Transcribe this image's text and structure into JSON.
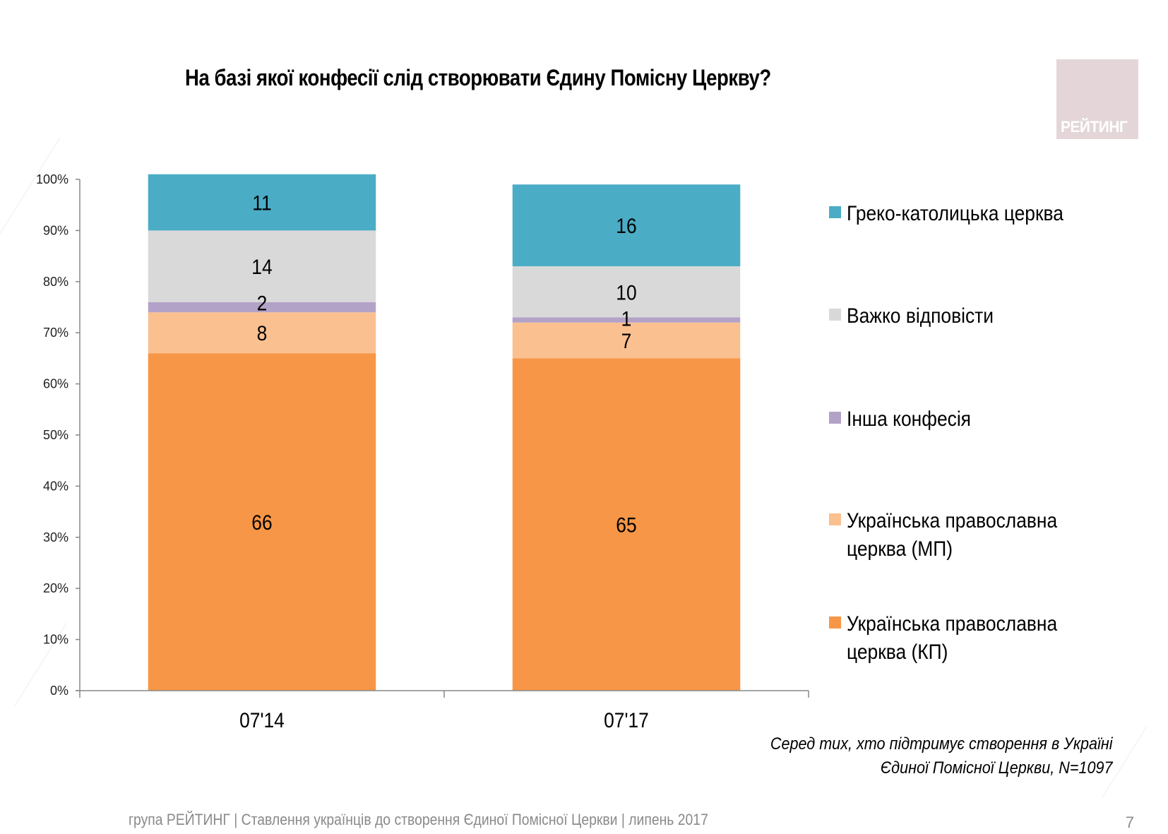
{
  "header": {
    "title": "На базі якої конфесії слід створювати Єдину Помісну Церкву?",
    "logo_text": "РЕЙТИНГ"
  },
  "chart_data": {
    "type": "bar",
    "stacked": true,
    "title": "На базі якої конфесії слід створювати Єдину Помісну Церкву?",
    "xlabel": "",
    "ylabel": "",
    "categories": [
      "07'14",
      "07'17"
    ],
    "ylim": [
      0,
      100
    ],
    "yticks": [
      "0%",
      "10%",
      "20%",
      "30%",
      "40%",
      "50%",
      "60%",
      "70%",
      "80%",
      "90%",
      "100%"
    ],
    "grid": false,
    "legend_position": "right",
    "series": [
      {
        "name": "Українська православна церква (КП)",
        "values": [
          66,
          65
        ],
        "color": "#f79646"
      },
      {
        "name": "Українська православна церква (МП)",
        "values": [
          8,
          7
        ],
        "color": "#fac090"
      },
      {
        "name": "Інша конфесія",
        "values": [
          2,
          1
        ],
        "color": "#b3a2c7"
      },
      {
        "name": "Важко відповісти",
        "values": [
          14,
          10
        ],
        "color": "#d9d9d9"
      },
      {
        "name": "Греко-католицька церква",
        "values": [
          11,
          16
        ],
        "color": "#4bacc6"
      }
    ]
  },
  "legend": {
    "items": [
      {
        "label": "Греко-католицька церква",
        "color": "#4bacc6"
      },
      {
        "label": "Важко відповісти",
        "color": "#d9d9d9"
      },
      {
        "label": "Інша конфесія",
        "color": "#b3a2c7"
      },
      {
        "label": "Українська православна церква (МП)",
        "color": "#fac090"
      },
      {
        "label": "Українська православна церква (КП)",
        "color": "#f79646"
      }
    ]
  },
  "note": {
    "line1": "Серед тих, хто підтримує створення в Україні",
    "line2": "Єдиної Помісної Церкви, N=1097"
  },
  "footer": {
    "text": "група РЕЙТИНГ  |  Ставлення українців до створення Єдиної Помісної Церкви  |  липень 2017",
    "page_number": "7"
  }
}
